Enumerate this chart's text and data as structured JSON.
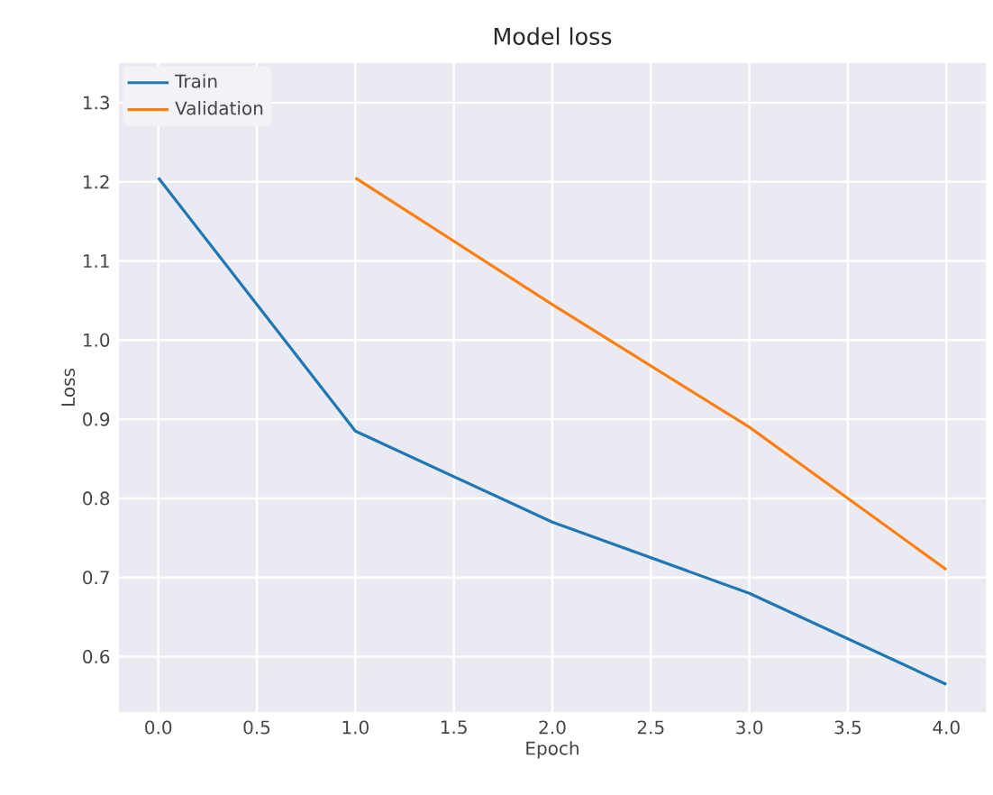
{
  "chart_data": {
    "type": "line",
    "title": "Model loss",
    "xlabel": "Epoch",
    "ylabel": "Loss",
    "x": [
      0,
      1,
      2,
      3,
      4
    ],
    "series": [
      {
        "name": "Train",
        "color": "#1f77b4",
        "values": [
          1.205,
          0.885,
          0.77,
          0.68,
          0.565
        ]
      },
      {
        "name": "Validation",
        "color": "#ff7f0e",
        "values": [
          null,
          1.205,
          1.045,
          0.89,
          0.71
        ]
      }
    ],
    "xlim": [
      -0.2,
      4.2
    ],
    "ylim": [
      0.53,
      1.35
    ],
    "xticks": [
      {
        "value": 0,
        "label": "0.0"
      },
      0.5,
      {
        "value": 1,
        "label": "1.0"
      },
      1.5,
      {
        "value": 2,
        "label": "2.0"
      },
      2.5,
      {
        "value": 3,
        "label": "3.0"
      },
      3.5,
      {
        "value": 4,
        "label": "4.0"
      }
    ],
    "yticks": [
      0.6,
      0.7,
      0.8,
      0.9,
      {
        "value": 1,
        "label": "1.0"
      },
      1.1,
      1.2,
      1.3
    ],
    "grid": true,
    "legend": "top left",
    "marker": "none",
    "line_style": "solid"
  }
}
